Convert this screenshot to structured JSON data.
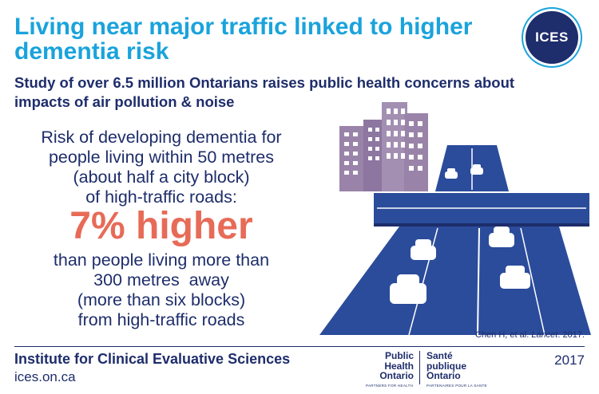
{
  "header": {
    "title": "Living near major traffic linked to higher dementia risk",
    "subtitle": "Study of over 6.5 million Ontarians raises public health concerns about impacts of air pollution & noise",
    "logo_text": "ICES"
  },
  "finding": {
    "lead_lines": [
      "Risk of developing dementia for",
      "people living within 50 metres",
      "(about half a city block)",
      "of high-traffic roads:"
    ],
    "highlight": "7% higher",
    "comparison_lines": [
      "than people living more than",
      "300 metres  away",
      "(more than six blocks)",
      "from high-traffic roads"
    ]
  },
  "citation": {
    "prefix": "Chen H, et al. ",
    "journal": "Lancet",
    "suffix": ". 2017."
  },
  "footer": {
    "org_name": "Institute for Clinical Evaluative Sciences",
    "url": "ices.on.ca",
    "year": "2017",
    "partner_logo": {
      "en_lines": [
        "Public",
        "Health",
        "Ontario"
      ],
      "en_tag": "PARTNERS FOR HEALTH",
      "fr_lines": [
        "Santé",
        "publique",
        "Ontario"
      ],
      "fr_tag": "PARTENAIRES POUR LA SANTÉ"
    }
  },
  "colors": {
    "title_blue": "#1aa3dc",
    "navy": "#1e2d6b",
    "highlight_coral": "#e76b57",
    "road_blue": "#2b4c9b",
    "building_purple": "#9a83a8"
  }
}
